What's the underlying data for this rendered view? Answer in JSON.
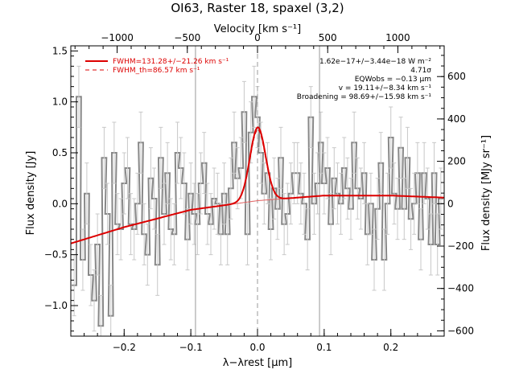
{
  "chart_data": {
    "type": "line",
    "title": "OI63, Raster 18, spaxel (3,2)",
    "xlabel": "λ−λrest [μm]",
    "ylabel": "Flux density [Jy]",
    "top_xlabel": "Velocity [km s⁻¹]",
    "right_ylabel": "Flux density [MJy sr⁻¹]",
    "xlim": [
      -0.28,
      0.28
    ],
    "ylim": [
      -1.3,
      1.55
    ],
    "top_xlim": [
      -1330,
      1330
    ],
    "right_ylim": [
      -625,
      745
    ],
    "x_ticks": [
      -0.2,
      -0.1,
      0.0,
      0.1,
      0.2
    ],
    "x_tick_labels": [
      "−0.2",
      "−0.1",
      "0.0",
      "0.1",
      "0.2"
    ],
    "y_ticks": [
      -1.0,
      -0.5,
      0.0,
      0.5,
      1.0,
      1.5
    ],
    "y_tick_labels": [
      "−1.0",
      "−0.5",
      "0.0",
      "0.5",
      "1.0",
      "1.5"
    ],
    "top_ticks": [
      -1000,
      -500,
      0,
      500,
      1000
    ],
    "top_tick_labels": [
      "−1000",
      "−500",
      "0",
      "500",
      "1000"
    ],
    "right_ticks": [
      -600,
      -400,
      -200,
      0,
      200,
      400,
      600
    ],
    "right_tick_labels": [
      "−600",
      "−400",
      "−200",
      "0",
      "200",
      "400",
      "600"
    ],
    "vlines_solid": [
      -0.093,
      0.093
    ],
    "vline_dashed": 0.0,
    "legend": {
      "position": "top-left",
      "entries": [
        {
          "label": "FWHM=131.28+/−21.26 km s⁻¹",
          "style": "solid",
          "color": "#dd0000"
        },
        {
          "label": "FWHM_th=86.57 km s⁻¹",
          "style": "dashed",
          "color": "#dd0000"
        }
      ]
    },
    "annotations": [
      "1.62e−17+/−3.44e−18 W m⁻²",
      "4.71σ",
      "EQWobs = −0.13 μm",
      "v = 19.11+/−8.34 km s⁻¹",
      "Broadening = 98.69+/−15.98 km s⁻¹"
    ],
    "series": [
      {
        "name": "",
        "style": "histogram",
        "color": "#888888",
        "x": [
          -0.275,
          -0.268,
          -0.262,
          -0.256,
          -0.25,
          -0.245,
          -0.24,
          -0.235,
          -0.23,
          -0.225,
          -0.22,
          -0.215,
          -0.21,
          -0.205,
          -0.2,
          -0.195,
          -0.19,
          -0.185,
          -0.18,
          -0.175,
          -0.17,
          -0.165,
          -0.16,
          -0.155,
          -0.15,
          -0.145,
          -0.14,
          -0.135,
          -0.13,
          -0.125,
          -0.12,
          -0.115,
          -0.11,
          -0.105,
          -0.1,
          -0.095,
          -0.09,
          -0.085,
          -0.08,
          -0.075,
          -0.07,
          -0.065,
          -0.06,
          -0.055,
          -0.05,
          -0.045,
          -0.04,
          -0.035,
          -0.03,
          -0.025,
          -0.02,
          -0.015,
          -0.01,
          -0.005,
          0.0,
          0.005,
          0.01,
          0.015,
          0.02,
          0.025,
          0.03,
          0.035,
          0.04,
          0.045,
          0.05,
          0.055,
          0.06,
          0.065,
          0.07,
          0.075,
          0.08,
          0.085,
          0.09,
          0.095,
          0.1,
          0.105,
          0.11,
          0.115,
          0.12,
          0.125,
          0.13,
          0.135,
          0.14,
          0.145,
          0.15,
          0.155,
          0.16,
          0.165,
          0.17,
          0.175,
          0.18,
          0.185,
          0.19,
          0.195,
          0.2,
          0.205,
          0.21,
          0.215,
          0.22,
          0.225,
          0.23,
          0.235,
          0.24,
          0.245,
          0.25,
          0.255,
          0.26,
          0.265,
          0.27,
          0.275
        ],
        "y": [
          -0.8,
          1.05,
          -0.55,
          0.1,
          -0.7,
          -0.95,
          -0.4,
          -1.2,
          0.45,
          -0.1,
          -1.1,
          0.5,
          -0.2,
          -0.25,
          0.2,
          0.35,
          -0.2,
          -0.25,
          0.0,
          0.6,
          -0.3,
          -0.5,
          0.25,
          0.05,
          -0.6,
          0.45,
          -0.1,
          0.3,
          -0.25,
          -0.3,
          0.5,
          0.35,
          0.2,
          -0.35,
          0.1,
          -0.1,
          -0.2,
          0.2,
          0.4,
          -0.1,
          -0.2,
          0.05,
          0.0,
          -0.3,
          0.1,
          -0.3,
          0.15,
          0.6,
          0.25,
          0.35,
          0.9,
          -0.3,
          0.7,
          1.05,
          0.85,
          0.5,
          0.1,
          0.3,
          -0.25,
          0.15,
          -0.05,
          0.45,
          -0.2,
          -0.1,
          0.1,
          0.3,
          0.3,
          0.1,
          0.0,
          -0.35,
          0.85,
          0.0,
          0.2,
          0.6,
          0.2,
          0.35,
          -0.2,
          0.25,
          0.1,
          0.0,
          0.35,
          0.15,
          -0.05,
          0.6,
          0.15,
          0.05,
          0.3,
          -0.3,
          0.0,
          -0.55,
          -0.05,
          0.4,
          -0.55,
          0.0,
          0.65,
          0.1,
          -0.05,
          0.55,
          -0.05,
          0.45,
          -0.15,
          0.0,
          0.3,
          -0.35,
          0.3,
          0.05,
          -0.4,
          0.3,
          -0.4,
          0.05
        ],
        "err": 0.3
      },
      {
        "name": "",
        "style": "fit",
        "color": "#dd0000",
        "baseline_x": [
          -0.28,
          -0.2,
          -0.1,
          0.0,
          0.1,
          0.2,
          0.28
        ],
        "baseline_y": [
          -0.39,
          -0.23,
          -0.06,
          0.03,
          0.08,
          0.08,
          0.06
        ],
        "peak_center": 0.0004,
        "peak_amplitude": 0.72,
        "peak_fwhm": 0.0276
      }
    ]
  }
}
